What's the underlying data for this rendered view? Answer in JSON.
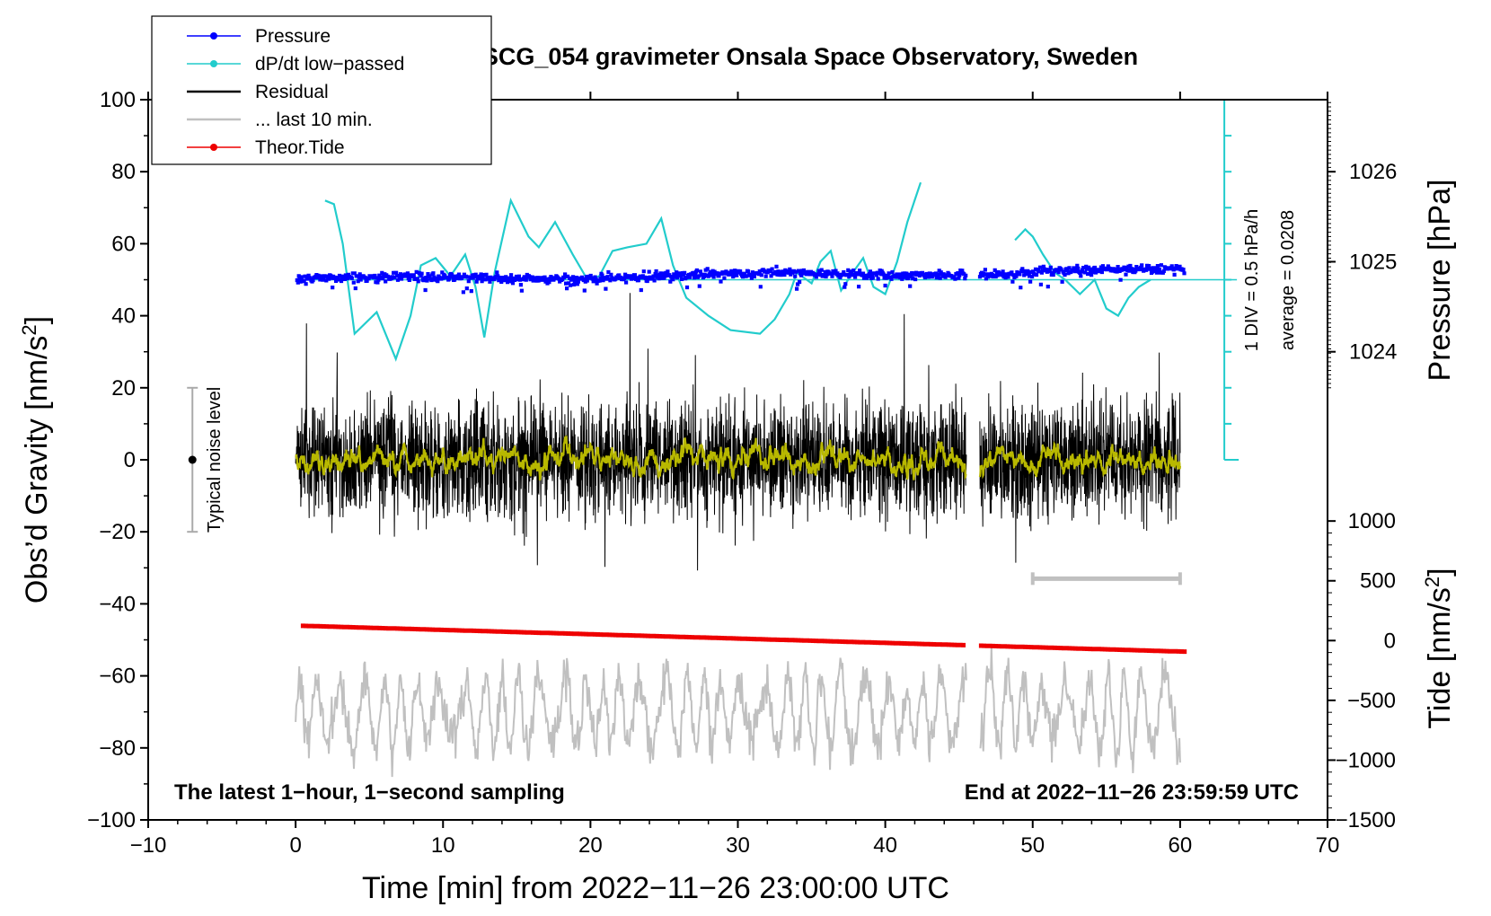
{
  "chart_data": {
    "type": "line",
    "title": "SCG_054 gravimeter Onsala Space Observatory, Sweden",
    "xlabel": "Time [min] from 2022−11−26 23:00:00 UTC",
    "ylabel_left": "Obs’d Gravity [nm/s",
    "ylabel_left_sup": "2",
    "ylabel_left_end": "]",
    "ylabel_right_pressure": "Pressure [hPa]",
    "ylabel_right_tide": "Tide [nm/s",
    "ylabel_right_tide_sup": "2",
    "ylabel_right_tide_end": "]",
    "xlim": [
      -10,
      70
    ],
    "ylim": [
      -100,
      100
    ],
    "x_ticks": [
      -10,
      0,
      10,
      20,
      30,
      40,
      50,
      60,
      70
    ],
    "x_tick_labels": [
      "−10",
      "0",
      "10",
      "20",
      "30",
      "40",
      "50",
      "60",
      "70"
    ],
    "y_ticks": [
      100,
      80,
      60,
      40,
      20,
      0,
      -20,
      -40,
      -60,
      -80,
      -100
    ],
    "y_tick_labels": [
      "100",
      "80",
      "60",
      "40",
      "20",
      "0",
      "−20",
      "−40",
      "−60",
      "−80",
      "−100"
    ],
    "pressure_axis": {
      "ticks": [
        1026,
        1025,
        1024
      ],
      "tick_labels": [
        "1026",
        "1025",
        "1024"
      ],
      "gravity_equivalent": [
        80,
        55,
        30
      ]
    },
    "tide_axis": {
      "ticks": [
        1000,
        500,
        0,
        -500,
        -1000,
        -1500
      ],
      "tick_labels": [
        "1000",
        "500",
        "0",
        "−500",
        "−1000",
        "−1500"
      ],
      "gravity_equivalent": [
        -17,
        -33.6,
        -50.2,
        -66.8,
        -83.4,
        -100
      ]
    },
    "dpdt_scale": {
      "label1": "1 DIV = 0.5 hPa/h",
      "label2": "average = 0.0208",
      "x": 63,
      "y_bottom": 0,
      "y_top": 100,
      "baseline_y": 50
    },
    "noise_bar": {
      "label": "Typical noise level",
      "x": -7,
      "center": 0,
      "range": [
        -20,
        20
      ]
    },
    "last10_bar": {
      "x_range": [
        50,
        60
      ],
      "y": -33
    },
    "gaps": [
      [
        45.5,
        46.4
      ]
    ],
    "series": [
      {
        "name": "Pressure",
        "color": "#0000ff",
        "style": "dots",
        "base": 50,
        "drift": 2.5,
        "noise": 1.2
      },
      {
        "name": "dP/dt low−passed",
        "color": "#22cccc",
        "style": "line",
        "x": [
          2,
          2.6,
          3.2,
          4,
          5.5,
          6.8,
          7.8,
          8.5,
          9.5,
          10.5,
          11.5,
          12.2,
          12.8,
          13.5,
          14.6,
          15.8,
          16.5,
          17.6,
          18.8,
          19.8,
          20.6,
          21.5,
          22.5,
          23.8,
          24.8,
          25.6,
          26.5,
          28,
          29.5,
          31.5,
          32.5,
          33.5,
          34,
          35,
          35.6,
          36.3,
          37,
          37.8,
          38.5,
          39.2,
          40,
          40.8,
          41.5,
          42.4,
          null,
          48.8,
          49.5,
          50,
          50.7,
          51.5,
          52.2,
          53.2,
          54.2,
          55,
          55.8,
          56.5,
          57.2,
          58
        ],
        "y": [
          72,
          71,
          60,
          35,
          41,
          28,
          40,
          54,
          56,
          51,
          57,
          48,
          34,
          52,
          72,
          62,
          59,
          66,
          57,
          50,
          51,
          58,
          59,
          60,
          67,
          54,
          45,
          40,
          36,
          35,
          39,
          46,
          52,
          49,
          55,
          58,
          47,
          52,
          56,
          48,
          46,
          55,
          66,
          77,
          null,
          61,
          64,
          62,
          57,
          52,
          50,
          46,
          50,
          42,
          40,
          45,
          48,
          50
        ]
      },
      {
        "name": "Residual",
        "color": "#000000",
        "style": "line",
        "noise": 8.5
      },
      {
        "name": "Residual smoothed",
        "color": "#b8b800",
        "style": "line",
        "noise": 1.6
      },
      {
        "name": "... last 10 min.",
        "color": "#c0c0c0",
        "style": "line",
        "base": -70,
        "amp": 11,
        "noise": 3
      },
      {
        "name": "Theor.Tide",
        "color": "#ee0000",
        "style": "dots",
        "x": [
          0.5,
          60.5
        ],
        "y": [
          -46.1,
          -53.3
        ]
      }
    ],
    "legend": {
      "placement": "top-left",
      "items": [
        {
          "label": "Pressure",
          "color": "#0000ff",
          "marker": "dot"
        },
        {
          "label": "dP/dt low−passed",
          "color": "#22cccc",
          "marker": "dot"
        },
        {
          "label": "Residual",
          "color": "#000000",
          "marker": "line"
        },
        {
          "label": "... last 10 min.",
          "color": "#c0c0c0",
          "marker": "line"
        },
        {
          "label": "Theor.Tide",
          "color": "#ee0000",
          "marker": "dot"
        }
      ]
    },
    "annotations": {
      "bottom_left": "The latest 1−hour, 1−second sampling",
      "bottom_right": "End at 2022−11−26 23:59:59 UTC"
    }
  }
}
